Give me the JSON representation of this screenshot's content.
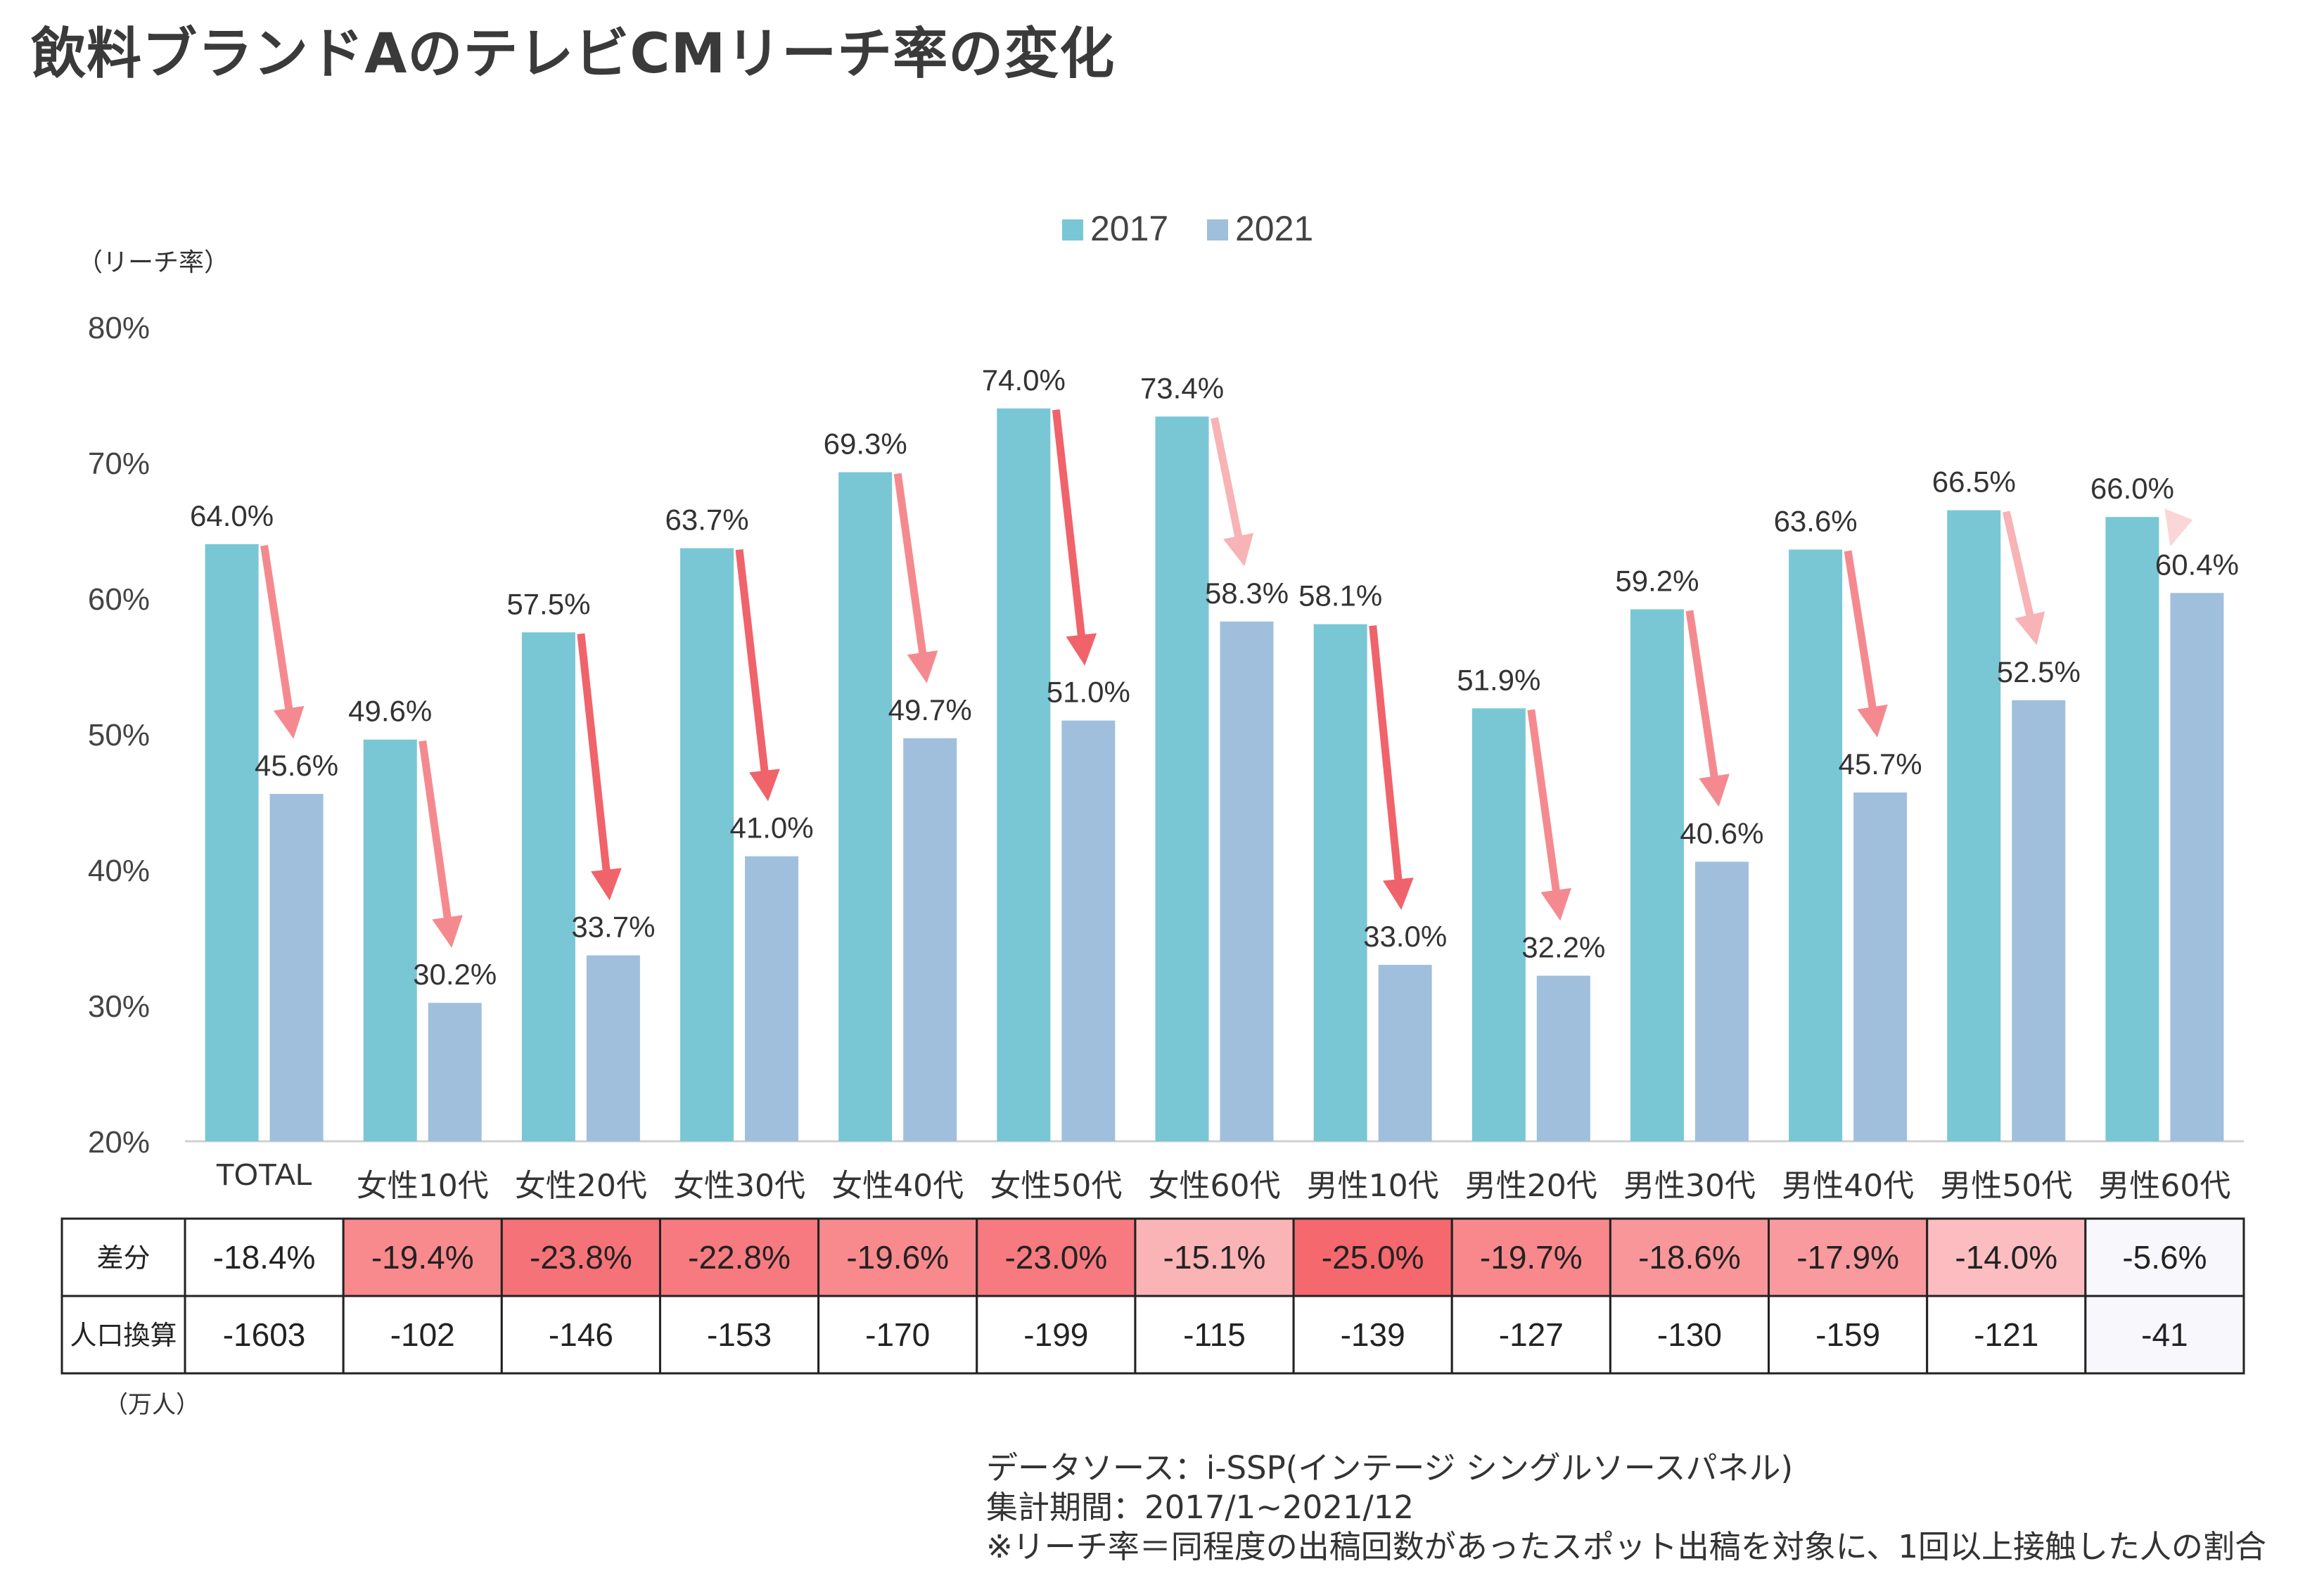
{
  "title": "飲料ブランドAのテレビCMリーチ率の変化",
  "colors": {
    "series_2017": "#79c7d5",
    "series_2021": "#9fbfdd",
    "arrow_strong": "#f0636b",
    "arrow_mid": "#f48a8f",
    "arrow_light": "#f7b3b6",
    "arrow_faint": "#fbd6d7"
  },
  "chart_data": {
    "type": "bar",
    "ylabel": "（リーチ率）",
    "ylim": [
      20,
      80
    ],
    "yticks": [
      "20%",
      "30%",
      "40%",
      "50%",
      "60%",
      "70%",
      "80%"
    ],
    "legend_position": "top-center",
    "grid": false,
    "categories": [
      "TOTAL",
      "女性10代",
      "女性20代",
      "女性30代",
      "女性40代",
      "女性50代",
      "女性60代",
      "男性10代",
      "男性20代",
      "男性30代",
      "男性40代",
      "男性50代",
      "男性60代"
    ],
    "series": [
      {
        "name": "2017",
        "values": [
          64.0,
          49.6,
          57.5,
          63.7,
          69.3,
          74.0,
          73.4,
          58.1,
          51.9,
          59.2,
          63.6,
          66.5,
          66.0
        ],
        "labels": [
          "64.0%",
          "49.6%",
          "57.5%",
          "63.7%",
          "69.3%",
          "74.0%",
          "73.4%",
          "58.1%",
          "51.9%",
          "59.2%",
          "63.6%",
          "66.5%",
          "66.0%"
        ]
      },
      {
        "name": "2021",
        "values": [
          45.6,
          30.2,
          33.7,
          41.0,
          49.7,
          51.0,
          58.3,
          33.0,
          32.2,
          40.6,
          45.7,
          52.5,
          60.4
        ],
        "labels": [
          "45.6%",
          "30.2%",
          "33.7%",
          "41.0%",
          "49.7%",
          "51.0%",
          "58.3%",
          "33.0%",
          "32.2%",
          "40.6%",
          "45.7%",
          "52.5%",
          "60.4%"
        ]
      }
    ]
  },
  "table": {
    "row_headers": [
      "差分",
      "人口換算"
    ],
    "diff": [
      "-18.4%",
      "-19.4%",
      "-23.8%",
      "-22.8%",
      "-19.6%",
      "-23.0%",
      "-15.1%",
      "-25.0%",
      "-19.7%",
      "-18.6%",
      "-17.9%",
      "-14.0%",
      "-5.6%"
    ],
    "diff_colors": [
      "#ffffff",
      "#f8898d",
      "#f57378",
      "#f67a7f",
      "#f8898d",
      "#f67a7f",
      "#fab4b6",
      "#f5686e",
      "#f8888c",
      "#f8969a",
      "#f99a9e",
      "#fbbdbf",
      "#f8f8fc"
    ],
    "population": [
      "-1603",
      "-102",
      "-146",
      "-153",
      "-170",
      "-199",
      "-115",
      "-139",
      "-127",
      "-130",
      "-159",
      "-121",
      "-41"
    ],
    "population_colors": [
      "#ffffff",
      "#ffffff",
      "#ffffff",
      "#ffffff",
      "#ffffff",
      "#ffffff",
      "#ffffff",
      "#ffffff",
      "#ffffff",
      "#ffffff",
      "#ffffff",
      "#ffffff",
      "#f8f8fc"
    ],
    "unit_note": "（万人）"
  },
  "notes": {
    "source": "データソース：i-SSP(インテージ シングルソースパネル)",
    "period": "集計期間：2017/1~2021/12",
    "definition": "※リーチ率＝同程度の出稿回数があったスポット出稿を対象に、1回以上接触した人の割合"
  }
}
